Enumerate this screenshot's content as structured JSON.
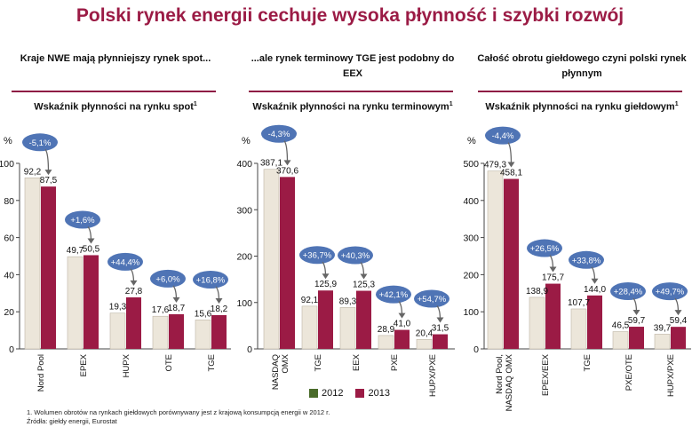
{
  "title": "Polski rynek energii cechuje wysoka płynność i szybki rozwój",
  "colors": {
    "y2012": "#ece6da",
    "y2013": "#9b1b45",
    "bubble": "#4f74b5",
    "rule": "#8e1b44",
    "axis": "#444444"
  },
  "chart_data": [
    {
      "type": "bar",
      "heading": "Kraje NWE mają płynniejszy rynek spot...",
      "subtitle": "Wskaźnik płynności na rynku spot",
      "subtitle_sup": "1",
      "ylabel": "%",
      "ylim": [
        0,
        100
      ],
      "yticks": [
        0,
        20,
        40,
        60,
        80,
        100
      ],
      "categories": [
        "Nord Pool",
        "EPEX",
        "HUPX",
        "OTE",
        "TGE"
      ],
      "series": [
        {
          "name": "2012",
          "values": [
            92.2,
            49.7,
            19.3,
            17.6,
            15.6
          ]
        },
        {
          "name": "2013",
          "values": [
            87.5,
            50.5,
            27.8,
            18.7,
            18.2
          ]
        }
      ],
      "value_labels_2012": [
        "92,2",
        "49,7",
        "19,3",
        "17,6",
        "15,6"
      ],
      "value_labels_2013": [
        "87,5",
        "50,5",
        "27,8",
        "18,7",
        "18,2"
      ],
      "changes": [
        "-5,1%",
        "+1,6%",
        "+44,4%",
        "+6,0%",
        "+16,8%"
      ]
    },
    {
      "type": "bar",
      "heading": "...ale rynek terminowy TGE jest podobny do EEX",
      "subtitle": "Wskaźnik płynności na rynku terminowym",
      "subtitle_sup": "1",
      "ylabel": "%",
      "ylim": [
        0,
        400
      ],
      "yticks": [
        0,
        100,
        200,
        300,
        400
      ],
      "categories": [
        "NASDAQ OMX",
        "TGE",
        "EEX",
        "PXE",
        "HUPX/PXE"
      ],
      "series": [
        {
          "name": "2012",
          "values": [
            387.1,
            92.1,
            89.3,
            28.9,
            20.4
          ]
        },
        {
          "name": "2013",
          "values": [
            370.6,
            125.9,
            125.3,
            41.0,
            31.5
          ]
        }
      ],
      "value_labels_2012": [
        "387,1",
        "92,1",
        "89,3",
        "28,9",
        "20,4"
      ],
      "value_labels_2013": [
        "370,6",
        "125,9",
        "125,3",
        "41,0",
        "31,5"
      ],
      "changes": [
        "-4,3%",
        "+36,7%",
        "+40,3%",
        "+42,1%",
        "+54,7%"
      ]
    },
    {
      "type": "bar",
      "heading": "Całość obrotu giełdowego czyni polski rynek płynnym",
      "subtitle": "Wskaźnik płynności na rynku giełdowym",
      "subtitle_sup": "1",
      "ylabel": "%",
      "ylim": [
        0,
        500
      ],
      "yticks": [
        0,
        100,
        200,
        300,
        400,
        500
      ],
      "categories": [
        "Nord Pool, NASDAQ OMX",
        "EPEX/EEX",
        "TGE",
        "PXE/OTE",
        "HUPX/PXE"
      ],
      "series": [
        {
          "name": "2012",
          "values": [
            479.3,
            138.9,
            107.7,
            46.5,
            39.7
          ]
        },
        {
          "name": "2013",
          "values": [
            458.1,
            175.7,
            144.0,
            59.7,
            59.4
          ]
        }
      ],
      "value_labels_2012": [
        "479,3",
        "138,9",
        "107,7",
        "46,5",
        "39,7"
      ],
      "value_labels_2013": [
        "458,1",
        "175,7",
        "144,0",
        "59,7",
        "59,4"
      ],
      "changes": [
        "-4,4%",
        "+26,5%",
        "+33,8%",
        "+28,4%",
        "+49,7%"
      ]
    }
  ],
  "legend": [
    {
      "label": "2012",
      "color": "#ece6da",
      "swatch": "#4a6b2a"
    },
    {
      "label": "2013",
      "color": "#9b1b45",
      "swatch": "#9b1b45"
    }
  ],
  "footnote_line1": "1. Wolumen obrotów na rynkach giełdowych porównywany jest z krajową konsumpcją energii w 2012 r.",
  "footnote_line2": "Źródła: giełdy energii, Eurostat"
}
